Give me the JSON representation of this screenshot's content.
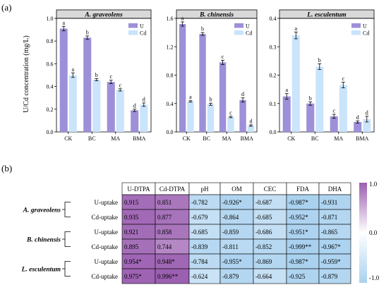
{
  "panel_a_label": "(a)",
  "panel_b_label": "(b)",
  "y_axis_label": "U/Cd concentration (mg/L)",
  "legend": {
    "u": "U",
    "cd": "Cd"
  },
  "colors": {
    "u": "#9d8fd8",
    "cd": "#c9e4fb",
    "panel_header": "#d9d9d9"
  },
  "chart_data": [
    {
      "type": "bar",
      "title": "A. graveolens",
      "categories": [
        "CK",
        "BC",
        "MA",
        "BMA"
      ],
      "ylim": [
        0,
        1.0
      ],
      "yticks": [
        "0.0",
        "0.2",
        "0.4",
        "0.6",
        "0.8",
        "1.0"
      ],
      "ytick_values": [
        0,
        0.2,
        0.4,
        0.6,
        0.8,
        1.0
      ],
      "legend_position": "top-right",
      "series": [
        {
          "name": "U",
          "values": [
            0.91,
            0.83,
            0.44,
            0.19
          ],
          "errors": [
            0.02,
            0.015,
            0.015,
            0.01
          ],
          "letters": [
            "a",
            "b",
            "c",
            "d"
          ]
        },
        {
          "name": "Cd",
          "values": [
            0.5,
            0.46,
            0.37,
            0.24
          ],
          "errors": [
            0.02,
            0.01,
            0.01,
            0.015
          ],
          "letters": [
            "a",
            "b",
            "c",
            "d"
          ]
        }
      ]
    },
    {
      "type": "bar",
      "title": "B. chinensis",
      "categories": [
        "CK",
        "BC",
        "MA",
        "BMA"
      ],
      "ylim": [
        0,
        1.6
      ],
      "yticks": [
        "0.0",
        "0.4",
        "0.8",
        "1.2",
        "1.6"
      ],
      "ytick_values": [
        0,
        0.4,
        0.8,
        1.2,
        1.6
      ],
      "legend_position": "top-right",
      "series": [
        {
          "name": "U",
          "values": [
            1.52,
            1.38,
            0.98,
            0.45
          ],
          "errors": [
            0.03,
            0.02,
            0.03,
            0.03
          ],
          "letters": [
            "a",
            "b",
            "c",
            "d"
          ]
        },
        {
          "name": "Cd",
          "values": [
            0.43,
            0.39,
            0.21,
            0.09
          ],
          "errors": [
            0.01,
            0.015,
            0.01,
            0.01
          ],
          "letters": [
            "a",
            "b",
            "c",
            "d"
          ]
        }
      ]
    },
    {
      "type": "bar",
      "title": "L. esculentum",
      "categories": [
        "CK",
        "BC",
        "MA",
        "BMA"
      ],
      "ylim": [
        0,
        0.4
      ],
      "yticks": [
        "0.0",
        "0.1",
        "0.2",
        "0.3",
        "0.4"
      ],
      "ytick_values": [
        0,
        0.1,
        0.2,
        0.3,
        0.4
      ],
      "legend_position": "top-right",
      "series": [
        {
          "name": "U",
          "values": [
            0.125,
            0.1,
            0.055,
            0.035
          ],
          "errors": [
            0.01,
            0.006,
            0.007,
            0.004
          ],
          "letters": [
            "a",
            "b",
            "c",
            "d"
          ]
        },
        {
          "name": "Cd",
          "values": [
            0.34,
            0.23,
            0.165,
            0.045
          ],
          "errors": [
            0.012,
            0.01,
            0.01,
            0.01
          ],
          "letters": [
            "a",
            "b",
            "c",
            "d"
          ]
        }
      ]
    },
    {
      "type": "heatmap",
      "columns": [
        "U-DTPA",
        "Cd-DTPA",
        "pH",
        "OM",
        "CEC",
        "FDA",
        "DHA"
      ],
      "groups": [
        {
          "name": "A. graveolens",
          "rows": [
            {
              "label": "U-uptake",
              "values": [
                0.915,
                0.851,
                -0.782,
                -0.926,
                -0.687,
                -0.987,
                -0.931
              ],
              "texts": [
                "0.915",
                "0.851",
                "-0.782",
                "-0.926*",
                "-0.687",
                "-0.987*",
                "-0.931"
              ]
            },
            {
              "label": "Cd-uptake",
              "values": [
                0.935,
                0.877,
                -0.679,
                -0.864,
                -0.685,
                -0.952,
                -0.871
              ],
              "texts": [
                "0.935",
                "0.877",
                "-0.679",
                "-0.864",
                "-0.685",
                "-0.952*",
                "-0.871"
              ]
            }
          ]
        },
        {
          "name": "B. chinensis",
          "rows": [
            {
              "label": "U-uptake",
              "values": [
                0.921,
                0.858,
                -0.685,
                -0.859,
                -0.686,
                -0.951,
                -0.865
              ],
              "texts": [
                "0.921",
                "0.858",
                "-0.685",
                "-0.859",
                "-0.686",
                "-0.951*",
                "-0.865"
              ]
            },
            {
              "label": "Cd-uptake",
              "values": [
                0.895,
                0.744,
                -0.839,
                -0.811,
                -0.852,
                -0.999,
                -0.967
              ],
              "texts": [
                "0.895",
                "0.744",
                "-0.839",
                "-0.811",
                "-0.852",
                "-0.999**",
                "-0.967*"
              ]
            }
          ]
        },
        {
          "name": "L. esculentum",
          "rows": [
            {
              "label": "U-uptake",
              "values": [
                0.954,
                0.948,
                -0.784,
                -0.955,
                -0.869,
                -0.987,
                -0.959
              ],
              "texts": [
                "0.954*",
                "0.948*",
                "-0.784",
                "-0.955*",
                "-0.869",
                "-0.987*",
                "-0.959*"
              ]
            },
            {
              "label": "Cd-uptake",
              "values": [
                0.975,
                0.996,
                -0.624,
                -0.879,
                -0.664,
                -0.925,
                -0.879
              ],
              "texts": [
                "0.975*",
                "0.996**",
                "-0.624",
                "-0.879",
                "-0.664",
                "-0.925",
                "-0.879"
              ]
            }
          ]
        }
      ],
      "colorbar": {
        "min": -1.0,
        "max": 1.0,
        "labels": [
          "1.0",
          "0.0",
          "-1.0"
        ],
        "colors": [
          "#9b5fb1",
          "#ffffff",
          "#a9d1ef"
        ]
      }
    }
  ]
}
